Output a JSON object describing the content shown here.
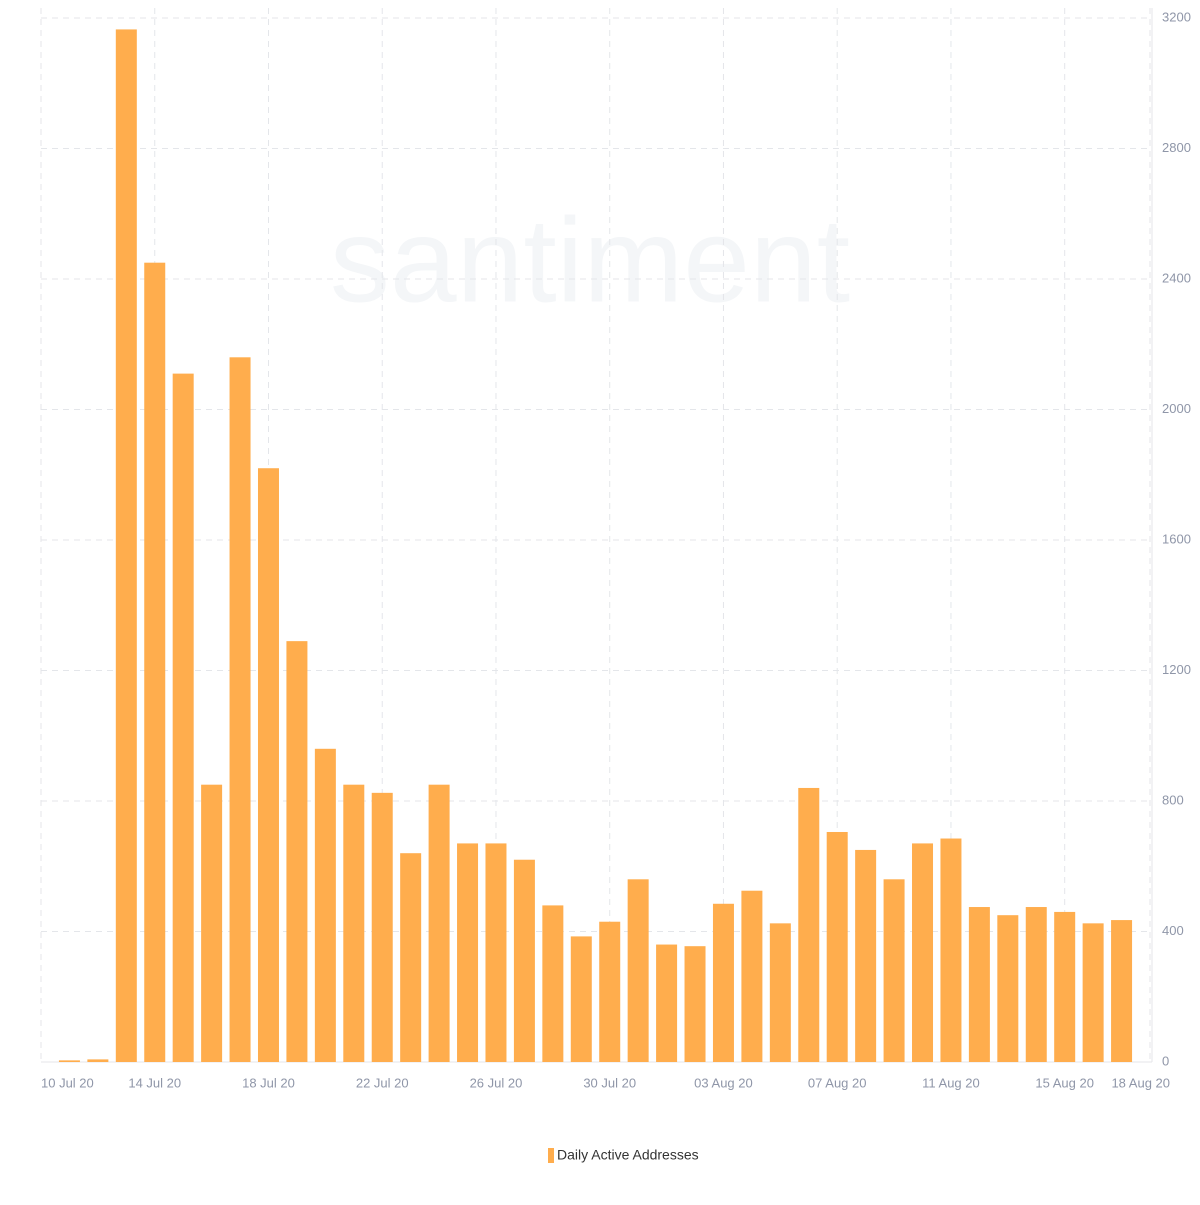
{
  "chart_data": {
    "type": "bar",
    "watermark": "santiment",
    "categories": [
      "10 Jul 20",
      null,
      null,
      null,
      "14 Jul 20",
      null,
      null,
      null,
      "18 Jul 20",
      null,
      null,
      null,
      "22 Jul 20",
      null,
      null,
      null,
      "26 Jul 20",
      null,
      null,
      null,
      "30 Jul 20",
      null,
      null,
      null,
      "03 Aug 20",
      null,
      null,
      null,
      "07 Aug 20",
      null,
      null,
      null,
      "11 Aug 20",
      null,
      null,
      null,
      "15 Aug 20",
      null,
      null,
      "18 Aug 20"
    ],
    "series": [
      {
        "name": "Daily Active Addresses",
        "color": "#ffad4d",
        "values": [
          null,
          5,
          8,
          3165,
          2450,
          2110,
          850,
          2160,
          1820,
          1290,
          960,
          850,
          825,
          640,
          850,
          670,
          670,
          620,
          480,
          385,
          430,
          560,
          360,
          355,
          485,
          525,
          425,
          840,
          705,
          650,
          560,
          670,
          685,
          475,
          450,
          475,
          460,
          425,
          435,
          null
        ]
      }
    ],
    "ylim": [
      0,
      3200
    ],
    "yticks": [
      0,
      400,
      800,
      1200,
      1600,
      2000,
      2400,
      2800,
      3200
    ],
    "grid": true,
    "y_axis_side": "right",
    "legend": "bottom"
  }
}
